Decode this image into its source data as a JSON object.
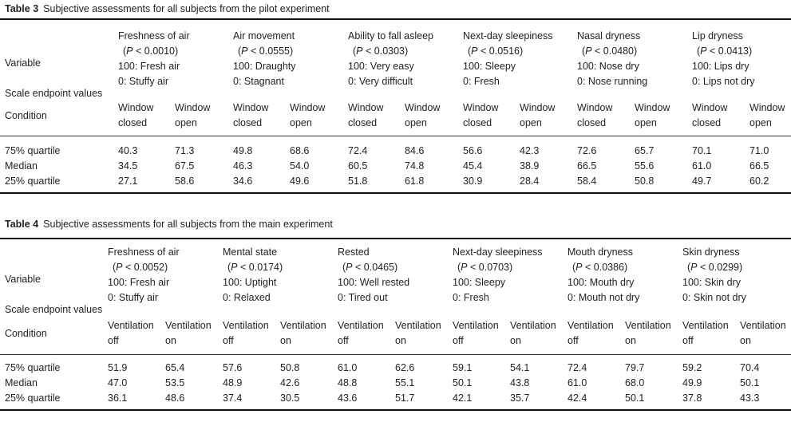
{
  "tables": [
    {
      "label": "Table 3",
      "title": "Subjective assessments for all subjects from the pilot experiment",
      "row_labels": {
        "variable": "Variable",
        "scale": "Scale endpoint values",
        "condition": "Condition"
      },
      "variables": [
        {
          "name": "Freshness of air",
          "p": "< 0.0010)",
          "high": "100: Fresh air",
          "low": "0: Stuffy air"
        },
        {
          "name": "Air movement",
          "p": "< 0.0555)",
          "high": "100: Draughty",
          "low": "0: Stagnant"
        },
        {
          "name": "Ability to fall asleep",
          "p": "< 0.0303)",
          "high": "100: Very easy",
          "low": "0: Very difficult"
        },
        {
          "name": "Next-day sleepiness",
          "p": "< 0.0516)",
          "high": "100: Sleepy",
          "low": "0: Fresh"
        },
        {
          "name": "Nasal dryness",
          "p": "< 0.0480)",
          "high": "100: Nose dry",
          "low": "0: Nose running"
        },
        {
          "name": "Lip dryness",
          "p": "< 0.0413)",
          "high": "100: Lips dry",
          "low": "0: Lips not dry"
        }
      ],
      "conditions": [
        [
          "Window",
          "closed"
        ],
        [
          "Window",
          "open"
        ]
      ],
      "rows": [
        {
          "label": "75% quartile",
          "values": [
            "40.3",
            "71.3",
            "49.8",
            "68.6",
            "72.4",
            "84.6",
            "56.6",
            "42.3",
            "72.6",
            "65.7",
            "70.1",
            "71.0"
          ]
        },
        {
          "label": "Median",
          "values": [
            "34.5",
            "67.5",
            "46.3",
            "54.0",
            "60.5",
            "74.8",
            "45.4",
            "38.9",
            "66.5",
            "55.6",
            "61.0",
            "66.5"
          ]
        },
        {
          "label": "25% quartile",
          "values": [
            "27.1",
            "58.6",
            "34.6",
            "49.6",
            "51.8",
            "61.8",
            "30.9",
            "28.4",
            "58.4",
            "50.8",
            "49.7",
            "60.2"
          ]
        }
      ]
    },
    {
      "label": "Table 4",
      "title": "Subjective assessments for all subjects from the main experiment",
      "row_labels": {
        "variable": "Variable",
        "scale": "Scale endpoint values",
        "condition": "Condition"
      },
      "variables": [
        {
          "name": "Freshness of air",
          "p": "< 0.0052)",
          "high": "100: Fresh air",
          "low": "0: Stuffy air"
        },
        {
          "name": "Mental state",
          "p": "< 0.0174)",
          "high": "100: Uptight",
          "low": "0: Relaxed"
        },
        {
          "name": "Rested",
          "p": "< 0.0465)",
          "high": "100: Well rested",
          "low": "0: Tired out"
        },
        {
          "name": "Next-day sleepiness",
          "p": "< 0.0703)",
          "high": "100: Sleepy",
          "low": "0: Fresh"
        },
        {
          "name": "Mouth dryness",
          "p": "< 0.0386)",
          "high": "100: Mouth dry",
          "low": "0: Mouth not dry"
        },
        {
          "name": "Skin dryness",
          "p": "< 0.0299)",
          "high": "100: Skin dry",
          "low": "0: Skin not dry"
        }
      ],
      "conditions": [
        [
          "Ventilation",
          "off"
        ],
        [
          "Ventilation",
          "on"
        ]
      ],
      "rows": [
        {
          "label": "75% quartile",
          "values": [
            "51.9",
            "65.4",
            "57.6",
            "50.8",
            "61.0",
            "62.6",
            "59.1",
            "54.1",
            "72.4",
            "79.7",
            "59.2",
            "70.4"
          ]
        },
        {
          "label": "Median",
          "values": [
            "47.0",
            "53.5",
            "48.9",
            "42.6",
            "48.8",
            "55.1",
            "50.1",
            "43.8",
            "61.0",
            "68.0",
            "49.9",
            "50.1"
          ]
        },
        {
          "label": "25% quartile",
          "values": [
            "36.1",
            "48.6",
            "37.4",
            "30.5",
            "43.6",
            "51.7",
            "42.1",
            "35.7",
            "42.4",
            "50.1",
            "37.8",
            "43.3"
          ]
        }
      ]
    }
  ]
}
